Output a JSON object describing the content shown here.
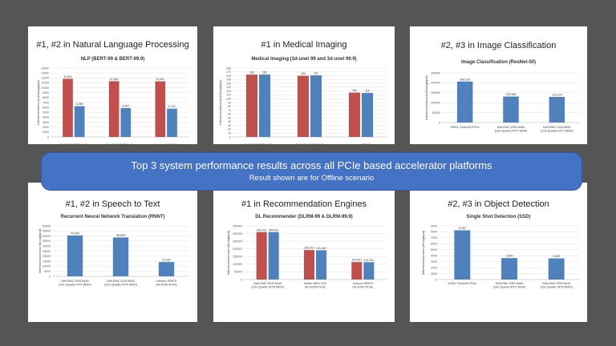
{
  "colors": {
    "background": "#555555",
    "card": "#ffffff",
    "red": "#c0504d",
    "blue": "#4f81bd",
    "banner": "#4472c4"
  },
  "banner": {
    "title": "Top 3 system performance results across all PCIe based accelerator platforms",
    "subtitle": "Result shown are for Offline scenario"
  },
  "cards": [
    {
      "heading": "#1, #2 in Natural Language Processing",
      "chart_data": {
        "type": "bar",
        "title": "NLP (BERT-99 & BERT-99.9)",
        "ylabel": "Inferences/second (throughput)",
        "ylim": [
          0,
          14000
        ],
        "yticks": [
          "0",
          "1000",
          "2000",
          "3000",
          "4000",
          "5000",
          "6000",
          "7000",
          "8000",
          "9000",
          "10000",
          "11000",
          "12000",
          "13000",
          "14000"
        ],
        "categories": [
          "Dell EMC DSS 8440 (10x Quadro RTX 8000)",
          "Dell EMC DSS 8440 (10x Quadro RTX 8000)",
          "Netrix 4640 G30 (4x A100-PCIe)"
        ],
        "series": [
          {
            "values": [
              11819,
              11344,
              11311
            ],
            "labels": [
              "11,819",
              "11,344",
              "11,311"
            ]
          },
          {
            "values": [
              6259,
              5857,
              5747
            ],
            "labels": [
              "6,259",
              "5,857",
              "5,747"
            ]
          }
        ]
      }
    },
    {
      "heading": "#1 in Medical Imaging",
      "chart_data": {
        "type": "bar",
        "title": "Medical Imaging (3d-unet 99 and 3d-unet 99.9)",
        "ylabel": "Inferences/second (throughput)",
        "ylim": [
          0,
          180
        ],
        "yticks": [
          "0",
          "10",
          "20",
          "30",
          "40",
          "50",
          "60",
          "70",
          "80",
          "90",
          "100",
          "110",
          "120",
          "130",
          "140",
          "150",
          "160",
          "170",
          "180"
        ],
        "categories": [
          "Dell EMC DSS 8440 (10x Quadro RTX 8000)",
          "Dell EMC DSS 8440 (10x Quadro RTX 8000)",
          "Lenovo SR670 (4x A100-PCIe)"
        ],
        "series": [
          {
            "values": [
              163,
              160,
              116
            ],
            "labels": [
              "163",
              "160",
              "116"
            ]
          },
          {
            "values": [
              163,
              161,
              115
            ],
            "labels": [
              "163",
              "161",
              "115"
            ]
          }
        ]
      }
    },
    {
      "heading": "#2, #3 in Image Classification",
      "chart_data": {
        "type": "bar",
        "title": "Image Classification (ResNet-50)",
        "ylabel": "Inferences/second (throughput)",
        "ylim": [
          0,
          250000
        ],
        "yticks": [
          "0",
          "50000",
          "100000",
          "150000",
          "200000",
          "250000"
        ],
        "categories": [
          "DSS1 10xA100-PCIe",
          "Dell EMC DSS 8440 (10x Quadro RTX 8000)",
          "Dell EMC DSS 8440 (10x Quadro RTX 8000)"
        ],
        "series": [
          {
            "values": [
              206616,
              130988,
              129124
            ],
            "labels": [
              "206,616",
              "130,988",
              "129,124"
            ]
          }
        ]
      }
    },
    {
      "heading": "#1, #2 in Speech to Text",
      "chart_data": {
        "type": "bar",
        "title": "Recurrent Neural Network Translation (RNNT)",
        "ylabel": "Inferences/second (throughput)",
        "ylim": [
          0,
          50000
        ],
        "yticks": [
          "0",
          "5000",
          "10000",
          "15000",
          "20000",
          "25000",
          "30000",
          "35000",
          "40000",
          "45000",
          "50000"
        ],
        "categories": [
          "Dell EMC DSS 8440 (10x Quadro RTX 8000)",
          "Dell EMC DSS 8440 (10x Quadro RTX 8000)",
          "Lenovo SR670 (4x A100-PCIe)"
        ],
        "series": [
          {
            "values": [
              40454,
              38533,
              14181
            ],
            "labels": [
              "40,454",
              "38,533",
              "14,181"
            ]
          }
        ]
      }
    },
    {
      "heading": "#1 in Recommendation Engines",
      "chart_data": {
        "type": "bar",
        "title": "DL Recommender (DLRM-99 & DLRM-99.9)",
        "ylabel": "Inferences/second (throughput)",
        "ylim": [
          0,
          350000
        ],
        "yticks": [
          "0",
          "50000",
          "100000",
          "150000",
          "200000",
          "250000",
          "300000",
          "350000"
        ],
        "categories": [
          "Dell EMC DSS 8440 (10x Quadro RTX 8000)",
          "Netrix 4640 G30 (4x A100-PCIe)",
          "Lenovo SR670 (4x A100-PCIe)"
        ],
        "series": [
          {
            "values": [
              309411,
              192417,
              114001
            ],
            "labels": [
              "309,411",
              "192,417",
              "114,001"
            ]
          },
          {
            "values": [
              309411,
              191167,
              113201
            ],
            "labels": [
              "309,411",
              "191,167",
              "113,201"
            ]
          }
        ]
      }
    },
    {
      "heading": "#2, #3 in Object Detection",
      "chart_data": {
        "type": "bar",
        "title": "Single Shot Detection (SSD)",
        "ylabel": "Inferences/second (throughput)",
        "ylim": [
          0,
          9000
        ],
        "yticks": [
          "0",
          "1000",
          "2000",
          "3000",
          "4000",
          "5000",
          "6000",
          "7000",
          "8000",
          "9000"
        ],
        "categories": [
          "DSS1 10xA100-PCIe",
          "Dell EMC DSS 8440 (10x Quadro RTX 8000)",
          "Dell EMC DSS 8440 (10x Quadro RTX 8000)"
        ],
        "series": [
          {
            "values": [
              8257,
              3600,
              3549
            ],
            "labels": [
              "8,257",
              "3,600",
              "3,549"
            ]
          }
        ]
      }
    }
  ]
}
